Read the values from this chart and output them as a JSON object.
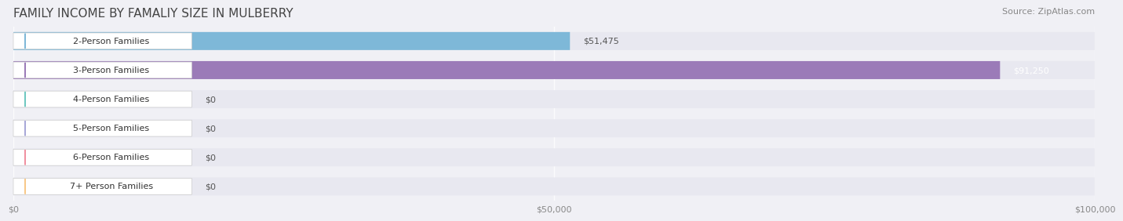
{
  "title": "FAMILY INCOME BY FAMALIY SIZE IN MULBERRY",
  "source": "Source: ZipAtlas.com",
  "categories": [
    "2-Person Families",
    "3-Person Families",
    "4-Person Families",
    "5-Person Families",
    "6-Person Families",
    "7+ Person Families"
  ],
  "values": [
    51475,
    91250,
    0,
    0,
    0,
    0
  ],
  "bar_colors": [
    "#7eb8d8",
    "#9b7bb8",
    "#6ec8c0",
    "#a8a8d8",
    "#f090a0",
    "#f8c888"
  ],
  "label_colors": [
    "#7eb8d8",
    "#9b7bb8",
    "#6ec8c0",
    "#a8a8d8",
    "#f090a0",
    "#f8c888"
  ],
  "value_labels": [
    "$51,475",
    "$91,250",
    "$0",
    "$0",
    "$0",
    "$0"
  ],
  "xlim": [
    0,
    100000
  ],
  "xticks": [
    0,
    50000,
    100000
  ],
  "xticklabels": [
    "$0",
    "$50,000",
    "$100,000"
  ],
  "background_color": "#f0f0f5",
  "bar_background": "#e8e8f0",
  "title_fontsize": 11,
  "source_fontsize": 8,
  "label_fontsize": 8,
  "value_fontsize": 8
}
